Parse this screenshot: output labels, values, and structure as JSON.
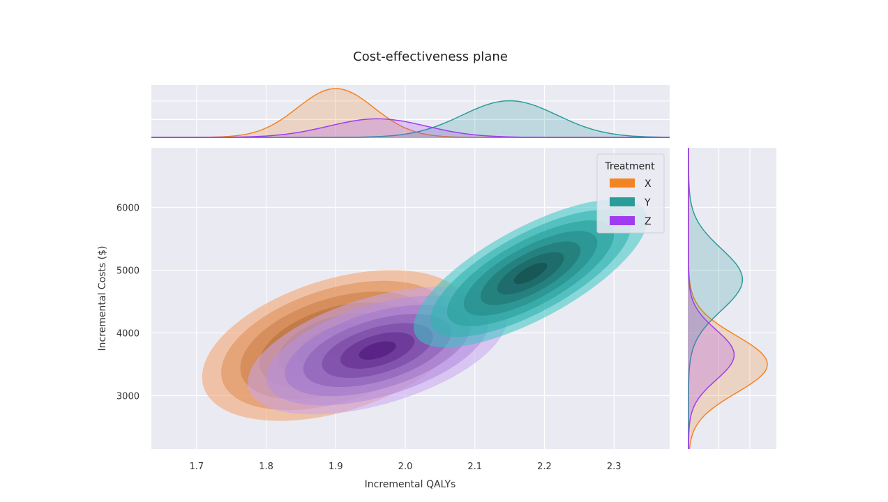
{
  "chart_data": {
    "type": "kde-joint",
    "title": "Cost-effectiveness plane",
    "xlabel": "Incremental QALYs",
    "ylabel": "Incremental Costs ($)",
    "xlim": [
      1.635,
      2.38
    ],
    "ylim": [
      2150,
      6950
    ],
    "xticks": [
      1.7,
      1.8,
      1.9,
      2.0,
      2.1,
      2.2,
      2.3
    ],
    "xtick_labels": [
      "1.7",
      "1.8",
      "1.9",
      "2.0",
      "2.1",
      "2.2",
      "2.3"
    ],
    "yticks": [
      3000,
      4000,
      5000,
      6000
    ],
    "ytick_labels": [
      "3000",
      "4000",
      "5000",
      "6000"
    ],
    "legend": {
      "title": "Treatment",
      "position": "upper-right"
    },
    "series": [
      {
        "name": "X",
        "color": "#f28522",
        "fill": "#f2a06a",
        "center": [
          1.9,
          3800
        ],
        "x_sd": 0.055,
        "y_sd": 480,
        "corr": 0.55,
        "x_extent": [
          1.7,
          2.08
        ],
        "y_extent": [
          2600,
          5000
        ],
        "contour_levels": 7,
        "x_marginal_peak": 1.9,
        "y_marginal_peak": 3500
      },
      {
        "name": "Y",
        "color": "#2a9d9a",
        "fill": "#38c6c2",
        "center": [
          2.18,
          4950
        ],
        "x_sd": 0.065,
        "y_sd": 520,
        "corr": 0.82,
        "x_extent": [
          2.02,
          2.35
        ],
        "y_extent": [
          4000,
          6420
        ],
        "contour_levels": 7,
        "x_marginal_peak": 2.15,
        "y_marginal_peak": 4850
      },
      {
        "name": "Z",
        "color": "#a03cf0",
        "fill": "#c8a6f0",
        "center": [
          1.96,
          3720
        ],
        "x_sd": 0.07,
        "y_sd": 420,
        "corr": 0.6,
        "x_extent": [
          1.76,
          2.13
        ],
        "y_extent": [
          2850,
          4880
        ],
        "contour_levels": 7,
        "x_marginal_peak": 1.96,
        "y_marginal_peak": 3650
      }
    ]
  }
}
